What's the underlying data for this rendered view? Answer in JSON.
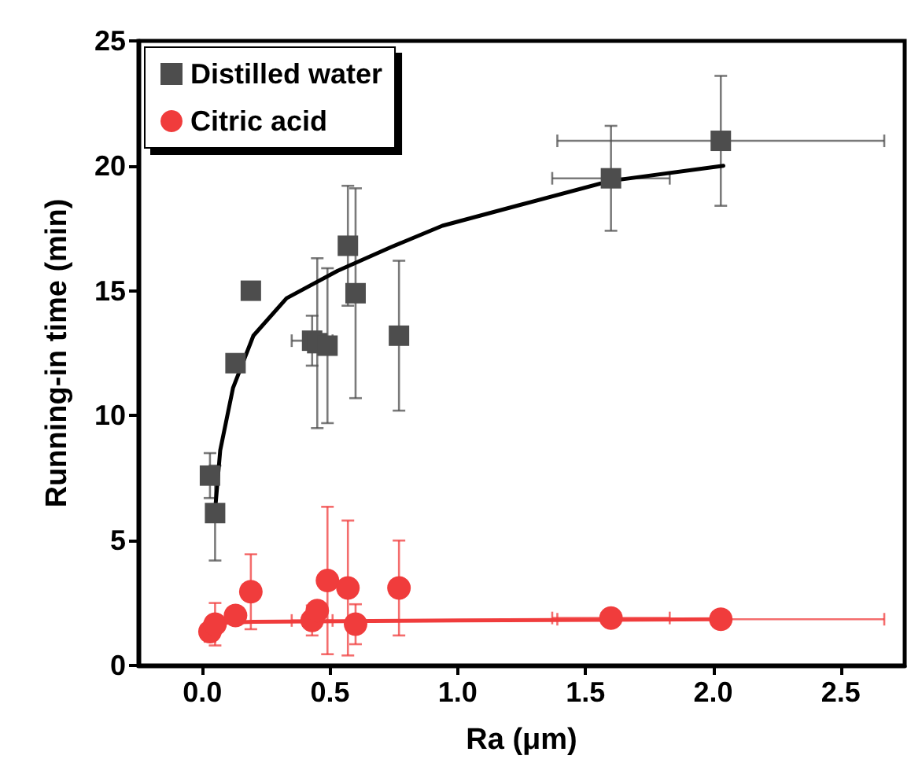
{
  "chart_data": {
    "type": "scatter",
    "xlabel": "Ra (μm)",
    "ylabel": "Running-in time (min)",
    "xlim": [
      -0.25,
      2.75
    ],
    "xticks": [
      {
        "value": 0,
        "label": "0.0"
      },
      {
        "value": 0.5,
        "label": "0.5"
      },
      {
        "value": 1,
        "label": "1.0"
      },
      {
        "value": 1.5,
        "label": "1.5"
      },
      {
        "value": 2,
        "label": "2.0"
      },
      {
        "value": 2.5,
        "label": "2.5"
      }
    ],
    "ylim": [
      0,
      25
    ],
    "yticks": [
      0,
      5,
      10,
      15,
      20,
      25
    ],
    "grid": false,
    "legend": "top left",
    "series": [
      {
        "name": "Distilled water",
        "marker": "square",
        "color": "#4d4d4d",
        "x": [
          0.03,
          0.05,
          0.13,
          0.19,
          0.43,
          0.45,
          0.49,
          0.57,
          0.6,
          0.77,
          1.6,
          2.03
        ],
        "values": [
          7.6,
          6.1,
          12.1,
          15.0,
          13.0,
          12.9,
          12.8,
          16.8,
          14.9,
          13.2,
          19.5,
          21.0
        ],
        "errors": [
          0.9,
          1.9,
          null,
          null,
          1.0,
          3.4,
          3.1,
          2.4,
          4.2,
          3.0,
          2.1,
          2.6
        ],
        "xerrors": [
          null,
          null,
          null,
          null,
          0.08,
          null,
          null,
          0.03,
          0.02,
          0.03,
          0.23,
          0.64
        ]
      },
      {
        "name": "Citric acid",
        "marker": "circle",
        "color": "#f03c3c",
        "x": [
          0.03,
          0.05,
          0.13,
          0.19,
          0.43,
          0.45,
          0.49,
          0.57,
          0.6,
          0.77,
          1.6,
          2.03
        ],
        "values": [
          1.35,
          1.65,
          2.0,
          2.95,
          1.8,
          2.2,
          3.4,
          3.1,
          1.65,
          3.1,
          1.9,
          1.85
        ],
        "errors": [
          0.4,
          0.85,
          null,
          1.5,
          0.6,
          0.3,
          2.95,
          2.7,
          0.8,
          1.9,
          0.35,
          null
        ],
        "xerrors": [
          null,
          null,
          null,
          null,
          0.08,
          null,
          null,
          0.03,
          0.02,
          0.03,
          0.23,
          0.64
        ]
      },
      {
        "type": "line",
        "marker": "none",
        "color": "#000000",
        "x": [
          0.045,
          0.05,
          0.07,
          0.12,
          0.2,
          0.33,
          0.53,
          0.74,
          0.94,
          1.25,
          1.6,
          2.04
        ],
        "values": [
          5.8,
          6.2,
          8.6,
          11.1,
          13.2,
          14.7,
          15.8,
          16.75,
          17.6,
          18.45,
          19.4,
          20.0
        ]
      },
      {
        "type": "line",
        "marker": "none",
        "color": "#f03c3c",
        "x": [
          0.03,
          0.06,
          0.2,
          1.0,
          2.03
        ],
        "values": [
          1.55,
          1.7,
          1.75,
          1.8,
          1.85
        ]
      }
    ]
  }
}
